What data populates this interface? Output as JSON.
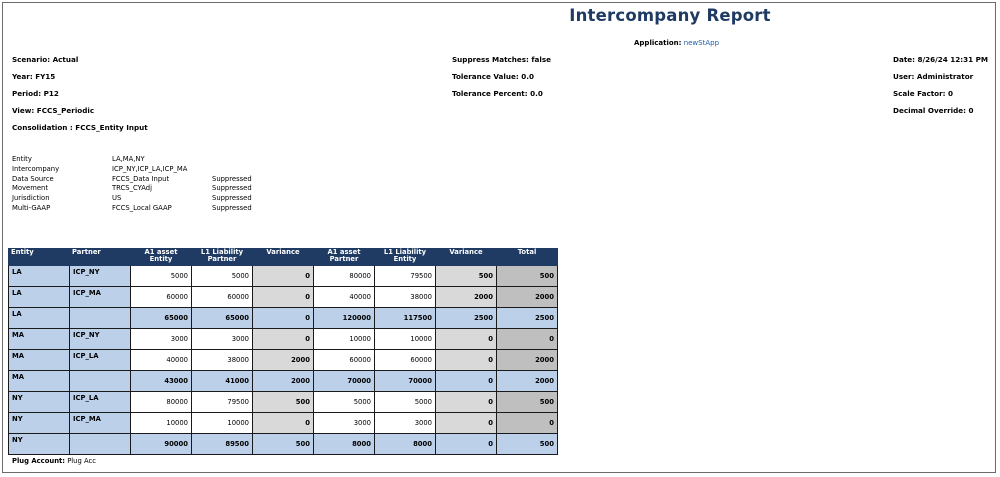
{
  "report": {
    "title": "Intercompany Report",
    "application_label": "Application:",
    "application_value": "newStApp"
  },
  "header": {
    "left": [
      "Scenario: Actual",
      "Year: FY15",
      "Period: P12",
      "View: FCCS_Periodic",
      "Consolidation : FCCS_Entity Input"
    ],
    "middle": [
      "Suppress Matches: false",
      "Tolerance Value: 0.0",
      "Tolerance Percent: 0.0"
    ],
    "right": [
      "Date: 8/26/24 12:31 PM",
      "User: Administrator",
      "Scale Factor: 0",
      "Decimal Override: 0"
    ]
  },
  "filters": [
    {
      "name": "Entity",
      "value": "LA,MA,NY",
      "status": ""
    },
    {
      "name": "Intercompany",
      "value": "ICP_NY,ICP_LA,ICP_MA",
      "status": ""
    },
    {
      "name": "Data Source",
      "value": "FCCS_Data Input",
      "status": "Suppressed"
    },
    {
      "name": "Movement",
      "value": "TRCS_CYAdj",
      "status": "Suppressed"
    },
    {
      "name": "Jurisdiction",
      "value": "US",
      "status": "Suppressed"
    },
    {
      "name": "Multi-GAAP",
      "value": "FCCS_Local GAAP",
      "status": "Suppressed"
    }
  ],
  "table": {
    "columns": [
      "Entity",
      "Partner",
      "A1 asset Entity",
      "L1 Liability Partner",
      "Variance",
      "A1 asset Partner",
      "L1 Liability Entity",
      "Variance",
      "Total"
    ],
    "rows": [
      {
        "entity": "LA",
        "partner": "ICP_NY",
        "a1e": "5000",
        "l1p": "5000",
        "v1": "0",
        "a1p": "80000",
        "l1e": "79500",
        "v2": "500",
        "total": "500",
        "sub": false
      },
      {
        "entity": "LA",
        "partner": "ICP_MA",
        "a1e": "60000",
        "l1p": "60000",
        "v1": "0",
        "a1p": "40000",
        "l1e": "38000",
        "v2": "2000",
        "total": "2000",
        "sub": false
      },
      {
        "entity": "LA",
        "partner": "",
        "a1e": "65000",
        "l1p": "65000",
        "v1": "0",
        "a1p": "120000",
        "l1e": "117500",
        "v2": "2500",
        "total": "2500",
        "sub": true
      },
      {
        "entity": "MA",
        "partner": "ICP_NY",
        "a1e": "3000",
        "l1p": "3000",
        "v1": "0",
        "a1p": "10000",
        "l1e": "10000",
        "v2": "0",
        "total": "0",
        "sub": false
      },
      {
        "entity": "MA",
        "partner": "ICP_LA",
        "a1e": "40000",
        "l1p": "38000",
        "v1": "2000",
        "a1p": "60000",
        "l1e": "60000",
        "v2": "0",
        "total": "2000",
        "sub": false
      },
      {
        "entity": "MA",
        "partner": "",
        "a1e": "43000",
        "l1p": "41000",
        "v1": "2000",
        "a1p": "70000",
        "l1e": "70000",
        "v2": "0",
        "total": "2000",
        "sub": true
      },
      {
        "entity": "NY",
        "partner": "ICP_LA",
        "a1e": "80000",
        "l1p": "79500",
        "v1": "500",
        "a1p": "5000",
        "l1e": "5000",
        "v2": "0",
        "total": "500",
        "sub": false
      },
      {
        "entity": "NY",
        "partner": "ICP_MA",
        "a1e": "10000",
        "l1p": "10000",
        "v1": "0",
        "a1p": "3000",
        "l1e": "3000",
        "v2": "0",
        "total": "0",
        "sub": false
      },
      {
        "entity": "NY",
        "partner": "",
        "a1e": "90000",
        "l1p": "89500",
        "v1": "500",
        "a1p": "8000",
        "l1e": "8000",
        "v2": "0",
        "total": "500",
        "sub": true
      }
    ]
  },
  "plug": {
    "label": "Plug Account:",
    "value": "Plug Acc"
  },
  "colors": {
    "title": "#1f3b63",
    "header_bg": "#1f3b63",
    "label_bg": "#bcd0ea",
    "variance_bg": "#d9d9d9",
    "total_bg": "#bfbfbf"
  }
}
